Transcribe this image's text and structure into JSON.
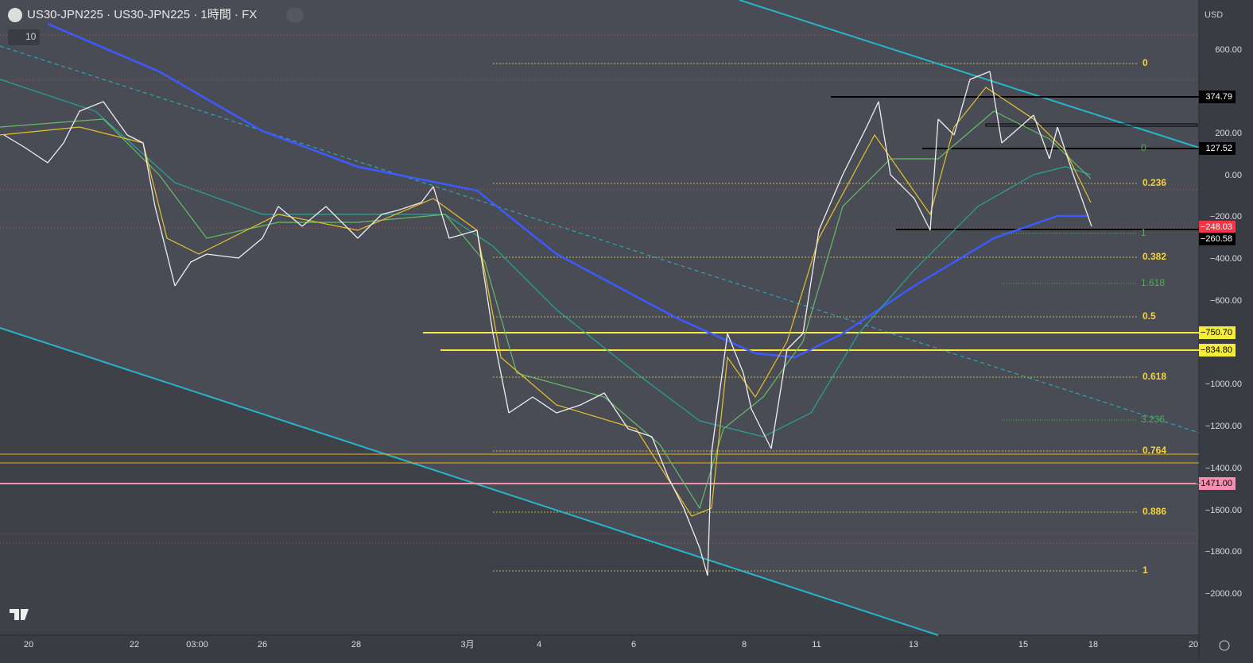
{
  "header": {
    "symbol": "US30-JPN225 · US30-JPN225 · 1時間 · FX",
    "interval_badge": "10"
  },
  "price_axis": {
    "currency": "USD",
    "labels": [
      "600.00",
      "200.00",
      "0.00",
      "−200.00",
      "−400.00",
      "−600.00",
      "−1000.00",
      "−1200.00",
      "−1400.00",
      "−1600.00",
      "−1800.00",
      "−2000.00"
    ]
  },
  "price_tags": [
    "374.79",
    "127.52",
    "−248.03",
    "−260.58",
    "−750.70",
    "−834.80",
    "−1471.00"
  ],
  "time_axis": {
    "labels": [
      "20",
      "22",
      "03:00",
      "26",
      "28",
      "3月",
      "4",
      "6",
      "8",
      "11",
      "13",
      "15",
      "18",
      "20"
    ]
  },
  "fib_levels": [
    "0",
    "0.236",
    "0.382",
    "0.5",
    "0.618",
    "0.764",
    "0.886",
    "1"
  ],
  "fib_extension_levels": [
    "0",
    "1",
    "1.618",
    "3.236"
  ]
}
